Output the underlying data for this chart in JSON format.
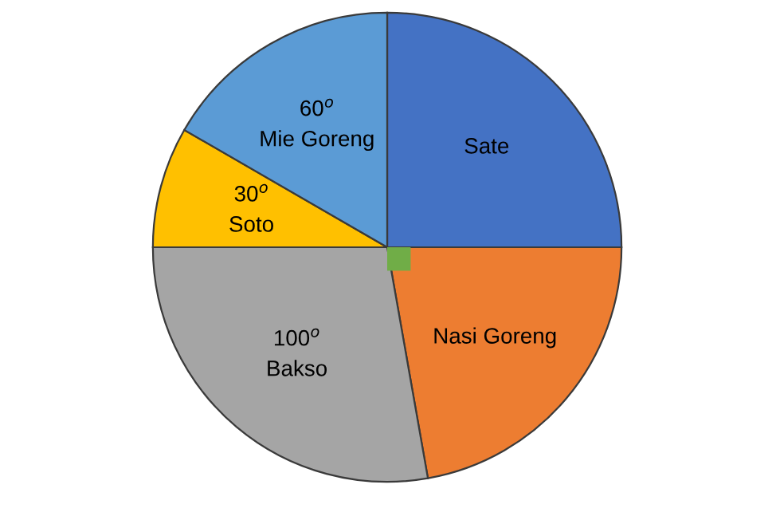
{
  "chart_data": {
    "type": "pie",
    "categories": [
      "Sate",
      "Nasi Goreng",
      "Bakso",
      "Soto",
      "Mie Goreng"
    ],
    "values": [
      90,
      80,
      100,
      30,
      60
    ],
    "value_labels": [
      null,
      null,
      "100$^{o}$",
      "30$^{o}$",
      "60$^{o}$"
    ],
    "colors": [
      "#4472c4",
      "#ed7d31",
      "#a5a5a5",
      "#ffc000",
      "#5b9bd5"
    ],
    "legend": false
  }
}
